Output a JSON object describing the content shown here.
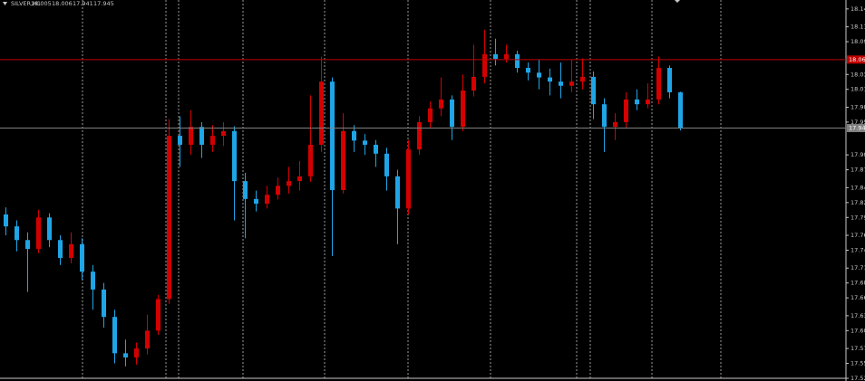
{
  "chart_data": {
    "type": "candlestick",
    "title": "SILVER,H1",
    "up_color": "#d40000",
    "down_color": "#1fa5e6",
    "ylim": [
      17.525,
      18.16
    ],
    "yticks": [
      18.145,
      18.115,
      {
        "value": 18.09,
        "label": "18.090"
      },
      18.035,
      {
        "value": 18.01,
        "label": "18.010"
      },
      {
        "value": 17.98,
        "label": "17.980"
      },
      17.955,
      {
        "value": 17.9,
        "label": "17.900"
      },
      17.875,
      17.845,
      {
        "value": 17.82,
        "label": "17.820"
      },
      17.795,
      17.765,
      {
        "value": 17.74,
        "label": "17.740"
      },
      {
        "value": 17.71,
        "label": "17.710"
      },
      17.685,
      {
        "value": 17.66,
        "label": "17.660"
      },
      {
        "value": 17.63,
        "label": "17.630"
      },
      17.605,
      17.575,
      {
        "value": 17.55,
        "label": "17.550"
      },
      17.525
    ],
    "price_lines": [
      {
        "value": 18.06,
        "label": "18.060",
        "color": "#c00000"
      },
      {
        "value": 17.945,
        "color": "#808080"
      }
    ],
    "open": [
      17.8,
      17.78,
      17.757,
      17.742,
      17.795,
      17.757,
      17.727,
      17.75,
      17.704,
      17.674,
      17.628,
      17.567,
      17.56,
      17.575,
      17.605,
      17.658,
      17.932,
      17.917,
      17.947,
      17.917,
      17.932,
      17.94,
      17.856,
      17.826,
      17.818,
      17.833,
      17.848,
      17.856,
      17.864,
      17.917,
      18.023,
      17.841,
      17.94,
      17.924,
      17.917,
      17.902,
      17.864,
      17.81,
      17.909,
      17.955,
      17.978,
      17.993,
      17.947,
      18.008,
      18.031,
      18.069,
      18.061,
      18.069,
      18.046,
      18.038,
      18.03,
      18.023,
      18.016,
      18.023,
      18.031,
      17.985,
      17.947,
      17.955,
      17.993,
      17.985,
      17.993,
      18.046,
      18.005
    ],
    "high": [
      17.812,
      17.79,
      17.77,
      17.808,
      17.802,
      17.765,
      17.77,
      17.76,
      17.715,
      17.685,
      17.64,
      17.59,
      17.585,
      17.632,
      17.665,
      17.96,
      17.965,
      17.975,
      17.955,
      17.95,
      17.955,
      17.948,
      17.87,
      17.84,
      17.848,
      17.862,
      17.88,
      17.89,
      18.0,
      18.065,
      18.03,
      17.97,
      17.95,
      17.935,
      17.925,
      17.912,
      17.875,
      17.925,
      17.965,
      17.99,
      18.03,
      18.0,
      18.035,
      18.085,
      18.11,
      18.095,
      18.085,
      18.075,
      18.055,
      18.06,
      18.045,
      18.055,
      18.06,
      18.062,
      18.04,
      17.995,
      17.97,
      18.005,
      18.01,
      18.02,
      18.065,
      18.05,
      18.006
    ],
    "low": [
      17.765,
      17.738,
      17.67,
      17.735,
      17.745,
      17.715,
      17.718,
      17.69,
      17.64,
      17.61,
      17.55,
      17.545,
      17.548,
      17.565,
      17.598,
      17.65,
      17.88,
      17.9,
      17.895,
      17.905,
      17.915,
      17.79,
      17.76,
      17.805,
      17.81,
      17.825,
      17.835,
      17.84,
      17.855,
      17.905,
      17.73,
      17.835,
      17.905,
      17.9,
      17.88,
      17.84,
      17.75,
      17.8,
      17.9,
      17.945,
      17.965,
      17.925,
      17.94,
      17.998,
      18.02,
      18.05,
      18.055,
      18.038,
      18.025,
      18.01,
      18.0,
      17.995,
      18.005,
      18.01,
      17.96,
      17.905,
      17.925,
      17.945,
      17.975,
      17.978,
      17.985,
      17.995,
      17.941
    ],
    "close": [
      17.78,
      17.757,
      17.742,
      17.795,
      17.757,
      17.727,
      17.75,
      17.704,
      17.674,
      17.628,
      17.567,
      17.56,
      17.575,
      17.605,
      17.658,
      17.932,
      17.917,
      17.947,
      17.917,
      17.932,
      17.94,
      17.856,
      17.826,
      17.818,
      17.833,
      17.848,
      17.856,
      17.864,
      17.917,
      18.023,
      17.841,
      17.94,
      17.924,
      17.917,
      17.902,
      17.864,
      17.81,
      17.909,
      17.955,
      17.978,
      17.993,
      17.947,
      18.008,
      18.031,
      18.069,
      18.061,
      18.069,
      18.046,
      18.038,
      18.03,
      18.023,
      18.016,
      18.023,
      18.031,
      17.985,
      17.947,
      17.955,
      17.993,
      17.985,
      17.993,
      18.046,
      18.005,
      17.945
    ]
  }
}
